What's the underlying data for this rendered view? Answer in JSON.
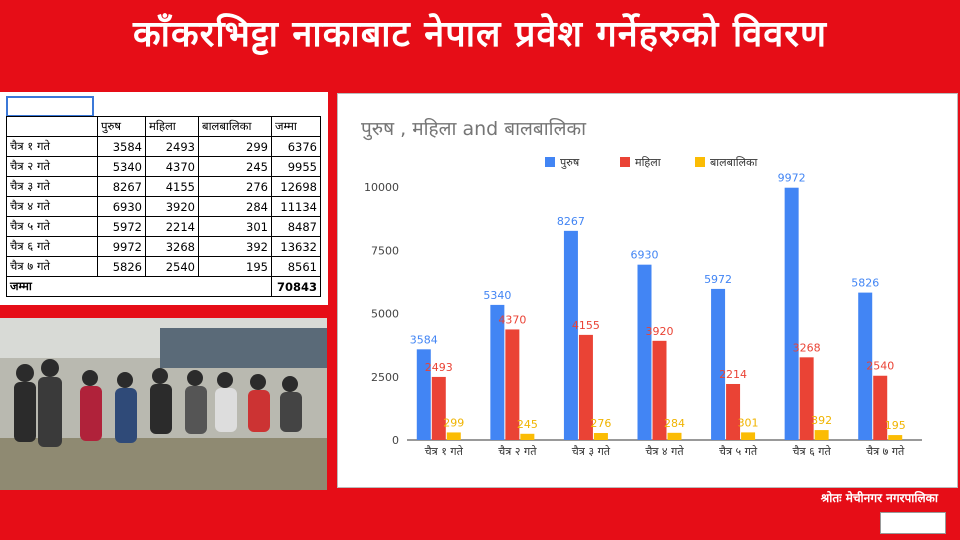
{
  "header": {
    "title": "काँकरभिट्टा नाकाबाट नेपाल प्रवेश गर्नेहरुको विवरण"
  },
  "table": {
    "columns": [
      "पुरुष",
      "महिला",
      "बालबालिका",
      "जम्मा"
    ],
    "rows": [
      {
        "label": "चैत्र १ गते",
        "values": [
          3584,
          2493,
          299,
          6376
        ]
      },
      {
        "label": "चैत्र २ गते",
        "values": [
          5340,
          4370,
          245,
          9955
        ]
      },
      {
        "label": "चैत्र ३ गते",
        "values": [
          8267,
          4155,
          276,
          12698
        ]
      },
      {
        "label": "चैत्र ४ गते",
        "values": [
          6930,
          3920,
          284,
          11134
        ]
      },
      {
        "label": "चैत्र ५ गते",
        "values": [
          5972,
          2214,
          301,
          8487
        ]
      },
      {
        "label": "चैत्र ६ गते",
        "values": [
          9972,
          3268,
          392,
          13632
        ]
      },
      {
        "label": "चैत्र ७ गते",
        "values": [
          5826,
          2540,
          195,
          8561
        ]
      }
    ],
    "total": {
      "label": "जम्मा",
      "value": 70843
    }
  },
  "chart_data": {
    "type": "bar",
    "title": "पुरुष , महिला and बालबालिका",
    "categories": [
      "चैत्र १ गते",
      "चैत्र २ गते",
      "चैत्र ३ गते",
      "चैत्र ४ गते",
      "चैत्र ५ गते",
      "चैत्र ६ गते",
      "चैत्र ७ गते"
    ],
    "series": [
      {
        "name": "पुरुष",
        "color": "#4285f4",
        "values": [
          3584,
          5340,
          8267,
          6930,
          5972,
          9972,
          5826
        ]
      },
      {
        "name": "महिला",
        "color": "#ea4335",
        "values": [
          2493,
          4370,
          4155,
          3920,
          2214,
          3268,
          2540
        ]
      },
      {
        "name": "बालबालिका",
        "color": "#fbbc04",
        "values": [
          299,
          245,
          276,
          284,
          301,
          392,
          195
        ]
      }
    ],
    "ylim": [
      0,
      10000
    ],
    "yticks": [
      0,
      2500,
      5000,
      7500,
      10000
    ],
    "grid": false,
    "legend": "top"
  },
  "source": "श्रोतः मेचीनगर नगरपालिका"
}
